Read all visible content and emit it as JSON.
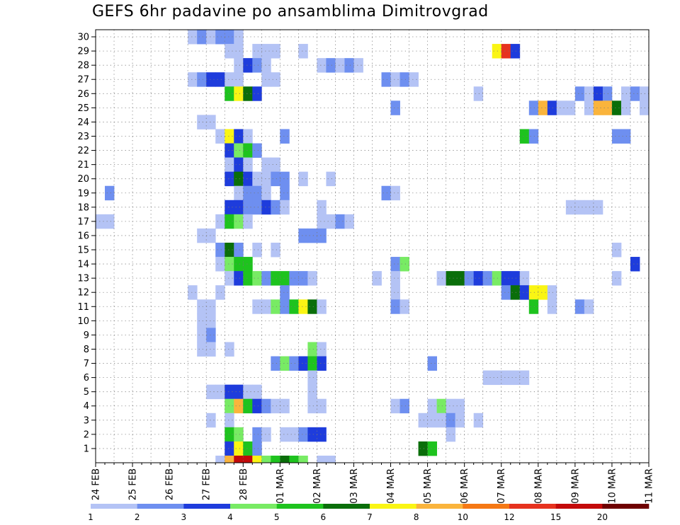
{
  "chart_data": {
    "type": "heatmap",
    "title": "GEFS 6hr padavine po ansamblima Dimitrovgrad",
    "y_categories": [
      "1",
      "2",
      "3",
      "4",
      "5",
      "6",
      "7",
      "8",
      "9",
      "10",
      "11",
      "12",
      "13",
      "14",
      "15",
      "16",
      "17",
      "18",
      "19",
      "20",
      "21",
      "22",
      "23",
      "24",
      "25",
      "26",
      "27",
      "28",
      "29",
      "30"
    ],
    "x_tick_labels": [
      "24 FEB",
      "25 FEB",
      "26 FEB",
      "27 FEB",
      "28 FEB",
      "01 MAR",
      "02 MAR",
      "03 MAR",
      "04 MAR",
      "05 MAR",
      "06 MAR",
      "07 MAR",
      "08 MAR",
      "09 MAR",
      "10 MAR",
      "11 MAR"
    ],
    "x_steps_per_day": 4,
    "x_range_steps": [
      0,
      60
    ],
    "grid": "dotted",
    "legend": {
      "placement": "bottom",
      "labels": [
        "1",
        "2",
        "3",
        "4",
        "5",
        "6",
        "7",
        "8",
        "10",
        "12",
        "15",
        "20"
      ],
      "colors": [
        "#b4c3f5",
        "#6e8ff0",
        "#1e3cdc",
        "#78eb64",
        "#1ec31e",
        "#0a6e0a",
        "#faf514",
        "#fab43c",
        "#f57814",
        "#e6321e",
        "#c30a0a",
        "#6e0000"
      ]
    },
    "cells": [
      [
        30,
        10,
        0
      ],
      [
        30,
        11,
        1
      ],
      [
        30,
        12,
        0
      ],
      [
        30,
        13,
        1
      ],
      [
        30,
        14,
        1
      ],
      [
        30,
        15,
        0
      ],
      [
        29,
        14,
        0
      ],
      [
        29,
        15,
        0
      ],
      [
        29,
        17,
        0
      ],
      [
        29,
        18,
        0
      ],
      [
        29,
        19,
        0
      ],
      [
        29,
        22,
        0
      ],
      [
        29,
        43,
        6
      ],
      [
        29,
        44,
        9
      ],
      [
        29,
        45,
        2
      ],
      [
        28,
        15,
        0
      ],
      [
        28,
        16,
        2
      ],
      [
        28,
        17,
        1
      ],
      [
        28,
        18,
        0
      ],
      [
        28,
        24,
        0
      ],
      [
        28,
        25,
        1
      ],
      [
        28,
        26,
        0
      ],
      [
        28,
        27,
        1
      ],
      [
        28,
        28,
        0
      ],
      [
        27,
        10,
        0
      ],
      [
        27,
        11,
        1
      ],
      [
        27,
        12,
        2
      ],
      [
        27,
        13,
        2
      ],
      [
        27,
        14,
        0
      ],
      [
        27,
        15,
        0
      ],
      [
        27,
        18,
        0
      ],
      [
        27,
        19,
        0
      ],
      [
        27,
        31,
        1
      ],
      [
        27,
        32,
        0
      ],
      [
        27,
        33,
        1
      ],
      [
        27,
        34,
        0
      ],
      [
        26,
        14,
        4
      ],
      [
        26,
        15,
        6
      ],
      [
        26,
        16,
        5
      ],
      [
        26,
        17,
        2
      ],
      [
        26,
        41,
        0
      ],
      [
        26,
        52,
        1
      ],
      [
        26,
        53,
        0
      ],
      [
        26,
        54,
        2
      ],
      [
        26,
        55,
        1
      ],
      [
        26,
        57,
        0
      ],
      [
        26,
        58,
        1
      ],
      [
        26,
        59,
        0
      ],
      [
        25,
        32,
        1
      ],
      [
        25,
        47,
        1
      ],
      [
        25,
        48,
        7
      ],
      [
        25,
        49,
        2
      ],
      [
        25,
        50,
        0
      ],
      [
        25,
        51,
        0
      ],
      [
        25,
        53,
        0
      ],
      [
        25,
        54,
        7
      ],
      [
        25,
        55,
        7
      ],
      [
        25,
        56,
        5
      ],
      [
        25,
        57,
        0
      ],
      [
        25,
        59,
        0
      ],
      [
        24,
        11,
        0
      ],
      [
        24,
        12,
        0
      ],
      [
        23,
        13,
        0
      ],
      [
        23,
        14,
        6
      ],
      [
        23,
        15,
        2
      ],
      [
        23,
        16,
        0
      ],
      [
        23,
        20,
        1
      ],
      [
        23,
        46,
        4
      ],
      [
        23,
        47,
        1
      ],
      [
        23,
        56,
        1
      ],
      [
        23,
        57,
        1
      ],
      [
        22,
        14,
        2
      ],
      [
        22,
        15,
        3
      ],
      [
        22,
        16,
        4
      ],
      [
        22,
        17,
        1
      ],
      [
        21,
        14,
        0
      ],
      [
        21,
        15,
        2
      ],
      [
        21,
        16,
        0
      ],
      [
        21,
        18,
        0
      ],
      [
        21,
        19,
        0
      ],
      [
        20,
        14,
        2
      ],
      [
        20,
        15,
        5
      ],
      [
        20,
        16,
        2
      ],
      [
        20,
        17,
        0
      ],
      [
        20,
        18,
        0
      ],
      [
        20,
        19,
        1
      ],
      [
        20,
        20,
        1
      ],
      [
        20,
        22,
        0
      ],
      [
        20,
        25,
        0
      ],
      [
        19,
        1,
        1
      ],
      [
        19,
        15,
        0
      ],
      [
        19,
        16,
        1
      ],
      [
        19,
        17,
        1
      ],
      [
        19,
        18,
        0
      ],
      [
        19,
        20,
        1
      ],
      [
        19,
        31,
        1
      ],
      [
        19,
        32,
        0
      ],
      [
        18,
        14,
        2
      ],
      [
        18,
        15,
        2
      ],
      [
        18,
        16,
        1
      ],
      [
        18,
        17,
        1
      ],
      [
        18,
        18,
        2
      ],
      [
        18,
        19,
        1
      ],
      [
        18,
        20,
        0
      ],
      [
        18,
        24,
        0
      ],
      [
        18,
        51,
        0
      ],
      [
        18,
        52,
        0
      ],
      [
        18,
        53,
        0
      ],
      [
        18,
        54,
        0
      ],
      [
        17,
        0,
        0
      ],
      [
        17,
        1,
        0
      ],
      [
        17,
        13,
        0
      ],
      [
        17,
        14,
        4
      ],
      [
        17,
        15,
        3
      ],
      [
        17,
        16,
        0
      ],
      [
        17,
        24,
        0
      ],
      [
        17,
        25,
        0
      ],
      [
        17,
        26,
        1
      ],
      [
        17,
        27,
        0
      ],
      [
        16,
        11,
        0
      ],
      [
        16,
        12,
        0
      ],
      [
        16,
        22,
        1
      ],
      [
        16,
        23,
        1
      ],
      [
        16,
        24,
        1
      ],
      [
        15,
        13,
        1
      ],
      [
        15,
        14,
        5
      ],
      [
        15,
        15,
        1
      ],
      [
        15,
        17,
        0
      ],
      [
        15,
        19,
        0
      ],
      [
        15,
        56,
        0
      ],
      [
        14,
        13,
        0
      ],
      [
        14,
        14,
        3
      ],
      [
        14,
        15,
        4
      ],
      [
        14,
        16,
        4
      ],
      [
        14,
        32,
        1
      ],
      [
        14,
        33,
        3
      ],
      [
        14,
        58,
        2
      ],
      [
        13,
        14,
        0
      ],
      [
        13,
        15,
        2
      ],
      [
        13,
        16,
        4
      ],
      [
        13,
        17,
        3
      ],
      [
        13,
        18,
        1
      ],
      [
        13,
        19,
        4
      ],
      [
        13,
        20,
        4
      ],
      [
        13,
        21,
        1
      ],
      [
        13,
        22,
        1
      ],
      [
        13,
        23,
        0
      ],
      [
        13,
        30,
        0
      ],
      [
        13,
        32,
        0
      ],
      [
        13,
        37,
        0
      ],
      [
        13,
        38,
        5
      ],
      [
        13,
        39,
        5
      ],
      [
        13,
        40,
        1
      ],
      [
        13,
        41,
        2
      ],
      [
        13,
        42,
        1
      ],
      [
        13,
        43,
        3
      ],
      [
        13,
        44,
        2
      ],
      [
        13,
        45,
        2
      ],
      [
        13,
        46,
        0
      ],
      [
        13,
        56,
        0
      ],
      [
        12,
        10,
        0
      ],
      [
        12,
        13,
        0
      ],
      [
        12,
        20,
        1
      ],
      [
        12,
        32,
        0
      ],
      [
        12,
        44,
        1
      ],
      [
        12,
        45,
        5
      ],
      [
        12,
        46,
        2
      ],
      [
        12,
        47,
        6
      ],
      [
        12,
        48,
        6
      ],
      [
        12,
        49,
        0
      ],
      [
        11,
        11,
        0
      ],
      [
        11,
        12,
        0
      ],
      [
        11,
        17,
        0
      ],
      [
        11,
        18,
        0
      ],
      [
        11,
        19,
        3
      ],
      [
        11,
        20,
        1
      ],
      [
        11,
        21,
        4
      ],
      [
        11,
        22,
        6
      ],
      [
        11,
        23,
        5
      ],
      [
        11,
        24,
        0
      ],
      [
        11,
        32,
        1
      ],
      [
        11,
        33,
        0
      ],
      [
        11,
        47,
        4
      ],
      [
        11,
        49,
        0
      ],
      [
        11,
        52,
        1
      ],
      [
        11,
        53,
        0
      ],
      [
        10,
        11,
        0
      ],
      [
        10,
        12,
        0
      ],
      [
        9,
        11,
        0
      ],
      [
        9,
        12,
        1
      ],
      [
        8,
        11,
        0
      ],
      [
        8,
        12,
        0
      ],
      [
        8,
        14,
        0
      ],
      [
        8,
        23,
        3
      ],
      [
        8,
        24,
        0
      ],
      [
        7,
        19,
        1
      ],
      [
        7,
        20,
        3
      ],
      [
        7,
        21,
        1
      ],
      [
        7,
        22,
        2
      ],
      [
        7,
        23,
        4
      ],
      [
        7,
        24,
        2
      ],
      [
        7,
        36,
        1
      ],
      [
        6,
        23,
        0
      ],
      [
        6,
        42,
        0
      ],
      [
        6,
        43,
        0
      ],
      [
        6,
        44,
        0
      ],
      [
        6,
        45,
        0
      ],
      [
        6,
        46,
        0
      ],
      [
        5,
        12,
        0
      ],
      [
        5,
        13,
        0
      ],
      [
        5,
        14,
        2
      ],
      [
        5,
        15,
        2
      ],
      [
        5,
        16,
        0
      ],
      [
        5,
        17,
        0
      ],
      [
        5,
        23,
        0
      ],
      [
        4,
        14,
        3
      ],
      [
        4,
        15,
        7
      ],
      [
        4,
        16,
        4
      ],
      [
        4,
        17,
        2
      ],
      [
        4,
        18,
        1
      ],
      [
        4,
        19,
        0
      ],
      [
        4,
        20,
        0
      ],
      [
        4,
        23,
        0
      ],
      [
        4,
        24,
        0
      ],
      [
        4,
        32,
        0
      ],
      [
        4,
        33,
        1
      ],
      [
        4,
        36,
        0
      ],
      [
        4,
        37,
        3
      ],
      [
        4,
        38,
        0
      ],
      [
        4,
        39,
        0
      ],
      [
        3,
        12,
        0
      ],
      [
        3,
        14,
        0
      ],
      [
        3,
        35,
        0
      ],
      [
        3,
        36,
        0
      ],
      [
        3,
        37,
        0
      ],
      [
        3,
        38,
        1
      ],
      [
        3,
        39,
        0
      ],
      [
        3,
        41,
        0
      ],
      [
        2,
        14,
        4
      ],
      [
        2,
        15,
        3
      ],
      [
        2,
        17,
        1
      ],
      [
        2,
        18,
        0
      ],
      [
        2,
        20,
        0
      ],
      [
        2,
        21,
        0
      ],
      [
        2,
        22,
        1
      ],
      [
        2,
        23,
        2
      ],
      [
        2,
        24,
        2
      ],
      [
        2,
        38,
        0
      ],
      [
        1,
        14,
        2
      ],
      [
        1,
        15,
        6
      ],
      [
        1,
        16,
        4
      ],
      [
        1,
        17,
        1
      ],
      [
        1,
        35,
        5
      ],
      [
        1,
        36,
        4
      ]
    ],
    "bottom_strip": [
      [
        13,
        0
      ],
      [
        14,
        7
      ],
      [
        15,
        10
      ],
      [
        16,
        10
      ],
      [
        17,
        6
      ],
      [
        18,
        3
      ],
      [
        19,
        4
      ],
      [
        20,
        5
      ],
      [
        21,
        4
      ],
      [
        22,
        3
      ],
      [
        24,
        0
      ],
      [
        25,
        0
      ]
    ]
  }
}
